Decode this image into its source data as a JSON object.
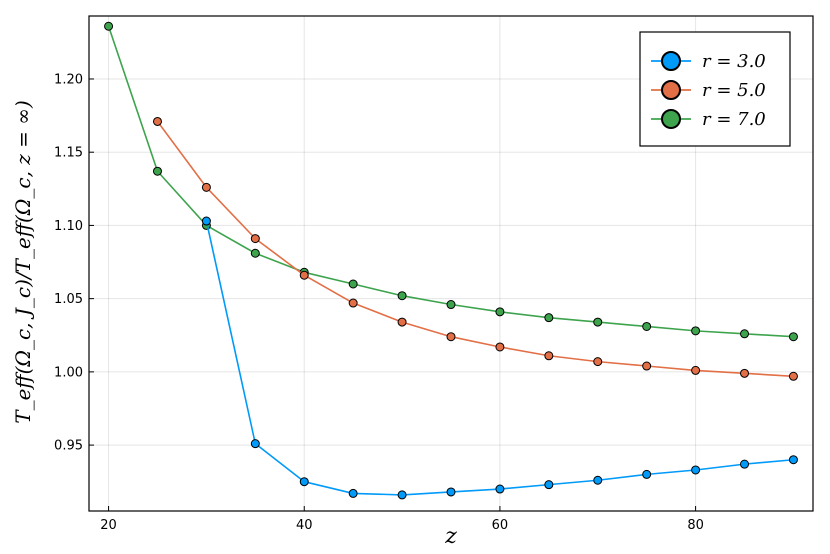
{
  "chart_data": {
    "type": "line",
    "xlabel": "z",
    "ylabel": "T_eff(Ω_c, J_c)/T_eff(Ω_c, z = ∞)",
    "xlim": [
      18,
      92
    ],
    "ylim": [
      0.905,
      1.243
    ],
    "x_ticks": [
      20,
      40,
      60,
      80
    ],
    "y_ticks": [
      0.95,
      1.0,
      1.05,
      1.1,
      1.15,
      1.2
    ],
    "x_tick_labels": [
      "20",
      "40",
      "60",
      "80"
    ],
    "y_tick_labels": [
      "0.95",
      "1.00",
      "1.05",
      "1.10",
      "1.15",
      "1.20"
    ],
    "grid": true,
    "legend_position": "top-right",
    "series": [
      {
        "name": "r = 3.0",
        "color": "#009af9",
        "x": [
          30,
          35,
          40,
          45,
          50,
          55,
          60,
          65,
          70,
          75,
          80,
          85,
          90
        ],
        "y": [
          1.103,
          0.951,
          0.925,
          0.917,
          0.916,
          0.918,
          0.92,
          0.923,
          0.926,
          0.93,
          0.933,
          0.937,
          0.94
        ]
      },
      {
        "name": "r = 5.0",
        "color": "#e26f46",
        "x": [
          25,
          30,
          35,
          40,
          45,
          50,
          55,
          60,
          65,
          70,
          75,
          80,
          85,
          90
        ],
        "y": [
          1.171,
          1.126,
          1.091,
          1.066,
          1.047,
          1.034,
          1.024,
          1.017,
          1.011,
          1.007,
          1.004,
          1.001,
          0.999,
          0.997
        ]
      },
      {
        "name": "r = 7.0",
        "color": "#3da44d",
        "x": [
          20,
          25,
          30,
          35,
          40,
          45,
          50,
          55,
          60,
          65,
          70,
          75,
          80,
          85,
          90
        ],
        "y": [
          1.236,
          1.137,
          1.1,
          1.081,
          1.068,
          1.06,
          1.052,
          1.046,
          1.041,
          1.037,
          1.034,
          1.031,
          1.028,
          1.026,
          1.024
        ]
      }
    ]
  }
}
